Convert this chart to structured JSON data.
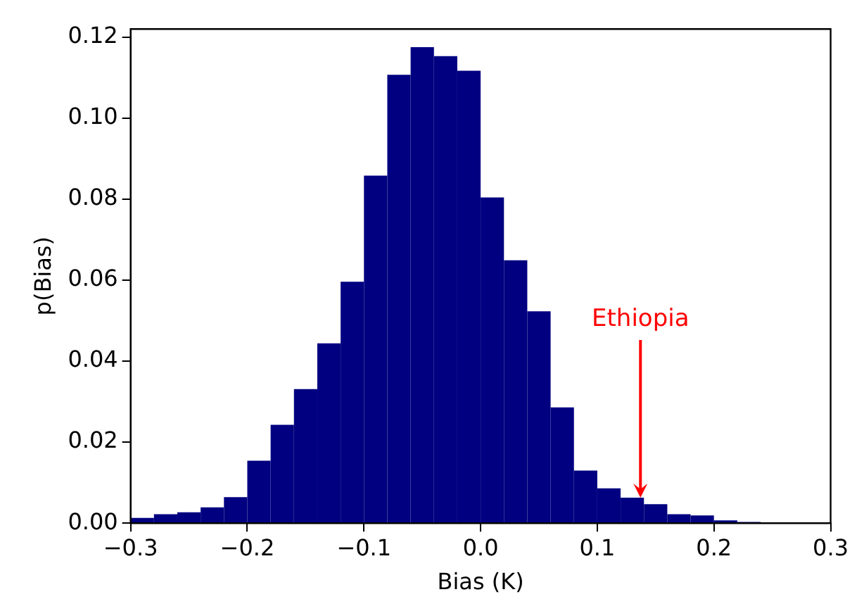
{
  "chart_data": {
    "type": "histogram",
    "xlabel": "Bias (K)",
    "ylabel": "p(Bias)",
    "color": "#000080",
    "bins": [
      -0.3,
      -0.28,
      -0.26,
      -0.24,
      -0.22,
      -0.2,
      -0.18,
      -0.16,
      -0.14,
      -0.12,
      -0.1,
      -0.08,
      -0.06,
      -0.04,
      -0.02,
      0,
      0.02,
      0.04,
      0.06,
      0.08,
      0.1,
      0.12,
      0.14,
      0.16,
      0.18,
      0.2,
      0.22,
      0.24,
      0.26,
      0.28,
      0.3
    ],
    "values": [
      0.0013,
      0.0022,
      0.0027,
      0.0039,
      0.0064,
      0.0154,
      0.0243,
      0.0331,
      0.0444,
      0.0596,
      0.0858,
      0.1107,
      0.1175,
      0.1153,
      0.1117,
      0.0804,
      0.0649,
      0.0523,
      0.0286,
      0.013,
      0.0086,
      0.0063,
      0.0047,
      0.0022,
      0.0019,
      0.0007,
      0.0003,
      0,
      0,
      0.0002
    ],
    "xlim": [
      -0.3,
      0.3
    ],
    "xticks": [
      {
        "value": -0.3,
        "label": "−0.3"
      },
      {
        "value": -0.2,
        "label": "−0.2"
      },
      {
        "value": -0.1,
        "label": "−0.1"
      },
      {
        "value": 0,
        "label": "0.0"
      },
      0.1,
      0.2,
      0.3
    ],
    "ylim": [
      0,
      0.122
    ],
    "yticks": [
      {
        "value": 0,
        "label": "0.00"
      },
      {
        "value": 0.02,
        "label": "0.02"
      },
      {
        "value": 0.04,
        "label": "0.04"
      },
      {
        "value": 0.06,
        "label": "0.06"
      },
      {
        "value": 0.08,
        "label": "0.08"
      },
      {
        "value": 0.1,
        "label": "0.10"
      },
      {
        "value": 0.12,
        "label": "0.12"
      }
    ],
    "annotations": [
      {
        "text": "Ethiopia",
        "x": 0.137,
        "y": 0.0063
      }
    ],
    "grid": false,
    "legend": false
  }
}
